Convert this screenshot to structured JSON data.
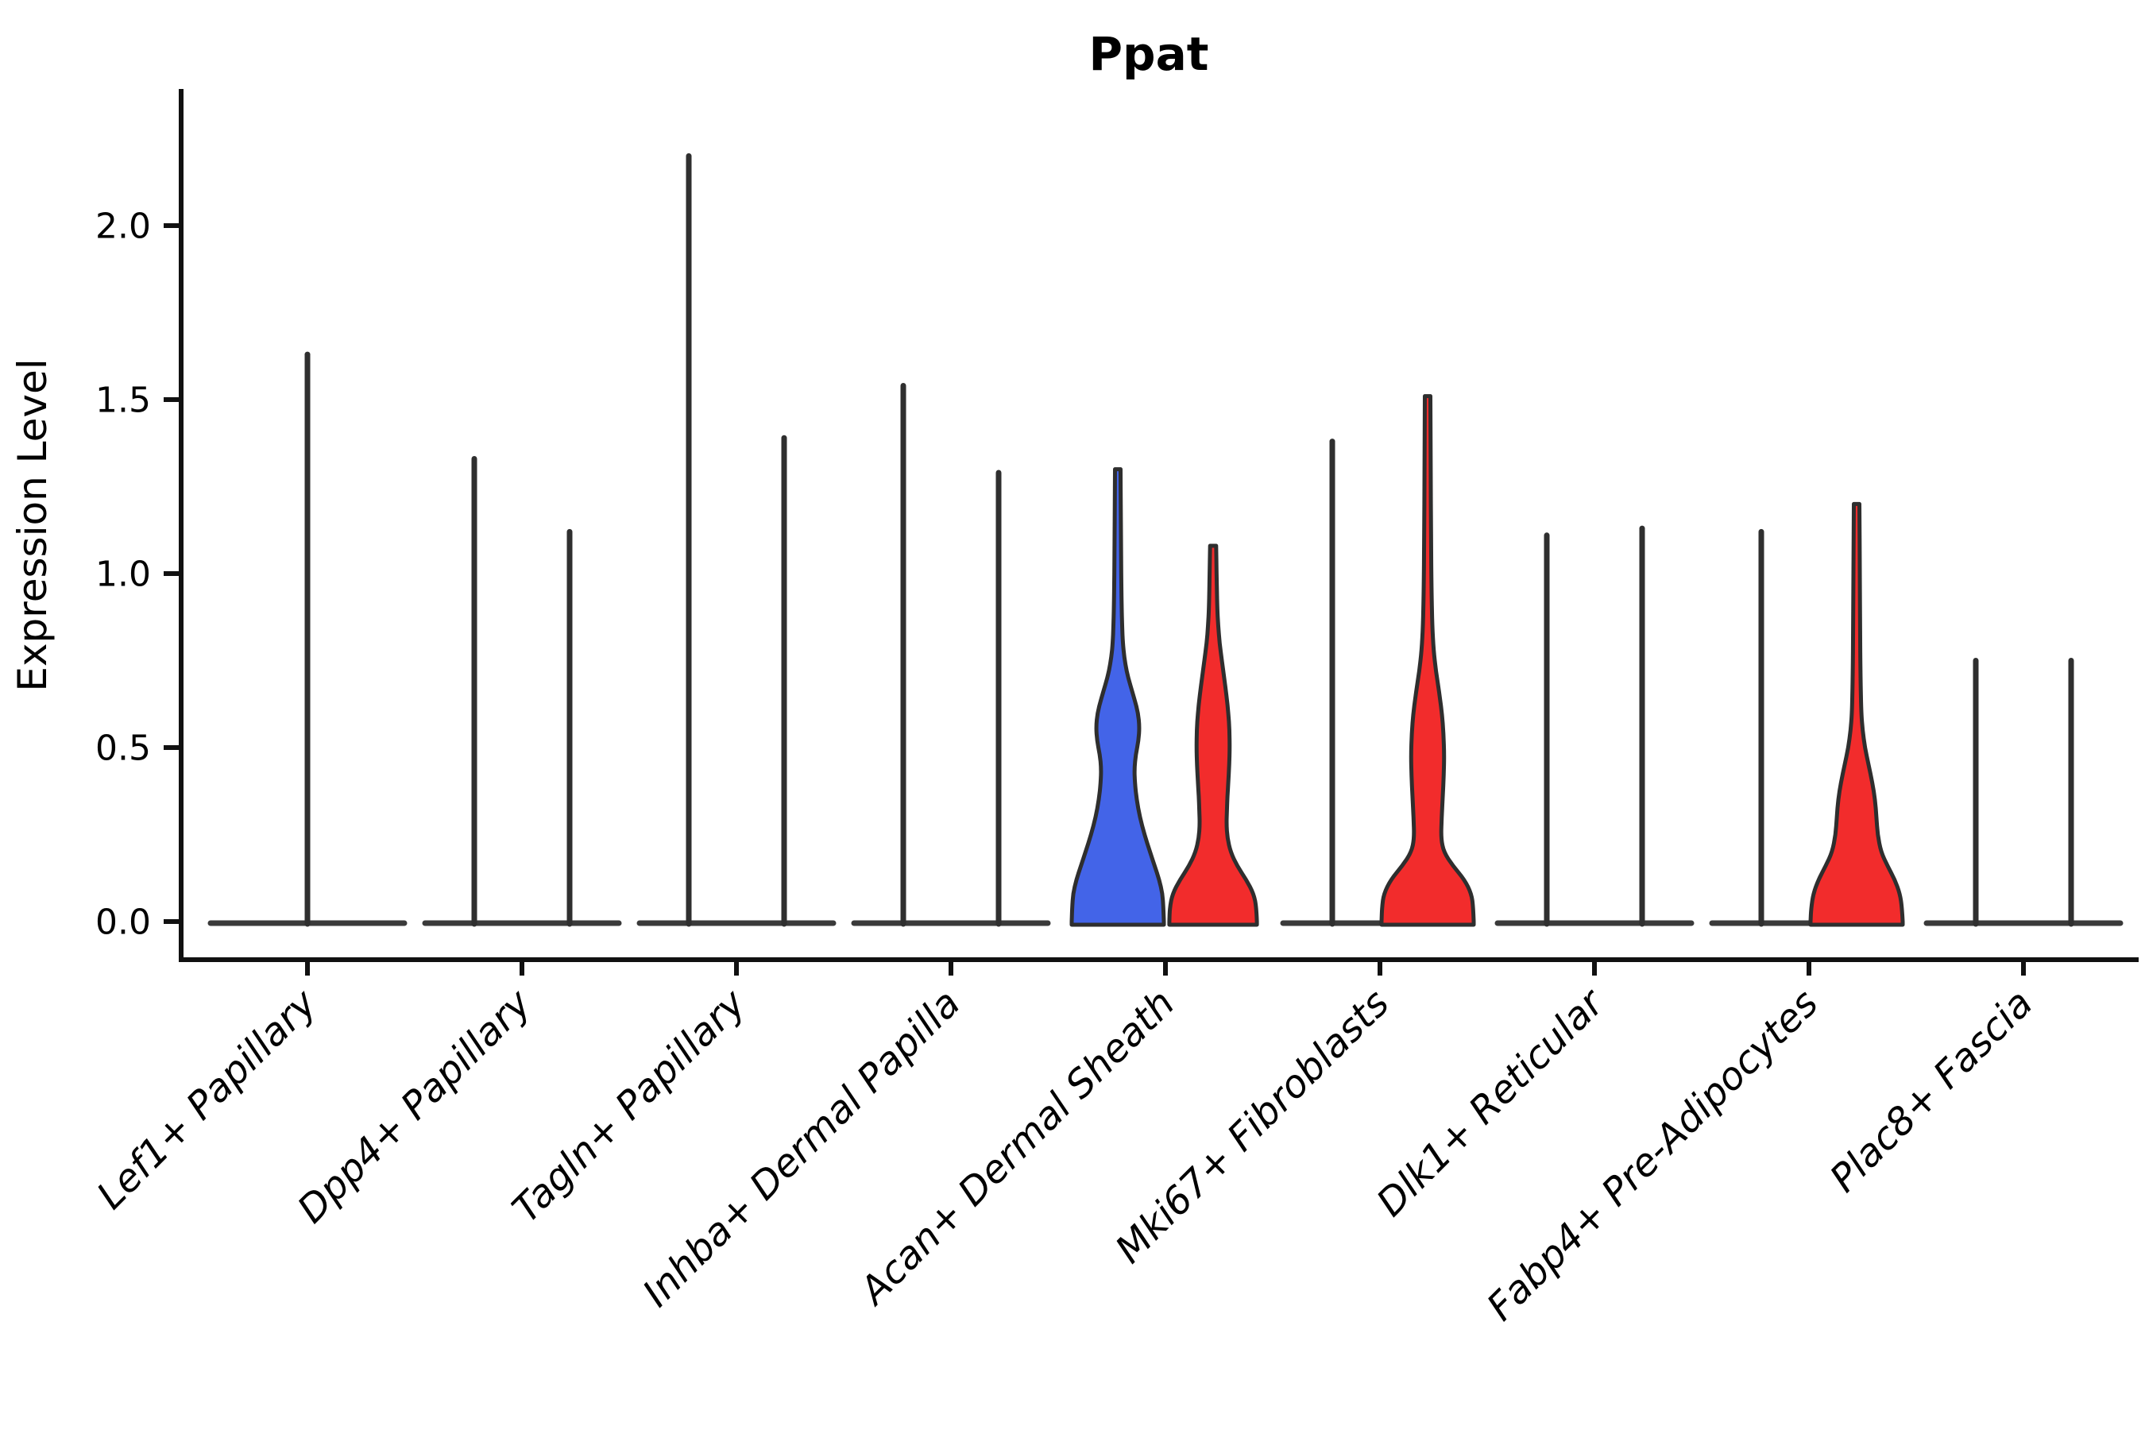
{
  "chart_data": {
    "type": "violin",
    "title": "Ppat",
    "ylabel": "Expression Level",
    "ylim": [
      0,
      2.35
    ],
    "grid": false,
    "legend": null,
    "yticks": [
      "0.0",
      "0.5",
      "1.0",
      "1.5",
      "2.0"
    ],
    "categories": [
      "Lef1+ Papillary",
      "Dpp4+ Papillary",
      "Tagln+ Papillary",
      "Inhba+ Dermal Papilla",
      "Acan+ Dermal Sheath",
      "Mki67+ Fibroblasts",
      "Dlk1+ Reticular",
      "Fabp4+ Pre-Adipocytes",
      "Plac8+ Fascia"
    ],
    "colors": {
      "spike": "#2f2f2f",
      "outline": "#2e2e2e",
      "blue": "#4364E8",
      "red": "#F22C2C"
    },
    "groups": [
      {
        "category": "Lef1+ Papillary",
        "violins": [
          {
            "kind": "spike",
            "max": 1.63,
            "span": "full"
          }
        ]
      },
      {
        "category": "Dpp4+ Papillary",
        "violins": [
          {
            "kind": "spike",
            "max": 1.33
          },
          {
            "kind": "spike",
            "max": 1.12
          }
        ]
      },
      {
        "category": "Tagln+ Papillary",
        "violins": [
          {
            "kind": "spike",
            "max": 2.2
          },
          {
            "kind": "spike",
            "max": 1.39
          }
        ]
      },
      {
        "category": "Inhba+ Dermal Papilla",
        "violins": [
          {
            "kind": "spike",
            "max": 1.54
          },
          {
            "kind": "spike",
            "max": 1.29
          }
        ]
      },
      {
        "category": "Acan+ Dermal Sheath",
        "violins": [
          {
            "kind": "shaped",
            "max": 1.3,
            "color": "blue",
            "profile": [
              [
                0,
                1
              ],
              [
                0.04,
                0.99
              ],
              [
                0.08,
                0.97
              ],
              [
                0.12,
                0.9
              ],
              [
                0.16,
                0.8
              ],
              [
                0.2,
                0.7
              ],
              [
                0.25,
                0.58
              ],
              [
                0.3,
                0.48
              ],
              [
                0.35,
                0.41
              ],
              [
                0.4,
                0.37
              ],
              [
                0.44,
                0.36
              ],
              [
                0.48,
                0.39
              ],
              [
                0.52,
                0.45
              ],
              [
                0.56,
                0.47
              ],
              [
                0.6,
                0.44
              ],
              [
                0.64,
                0.36
              ],
              [
                0.68,
                0.27
              ],
              [
                0.72,
                0.19
              ],
              [
                0.76,
                0.14
              ],
              [
                0.8,
                0.11
              ],
              [
                0.85,
                0.095
              ],
              [
                0.9,
                0.085
              ],
              [
                1,
                0.075
              ],
              [
                1.1,
                0.07
              ],
              [
                1.2,
                0.065
              ],
              [
                1.3,
                0.06
              ]
            ]
          },
          {
            "kind": "shaped",
            "max": 1.08,
            "color": "red",
            "profile": [
              [
                0,
                0.95
              ],
              [
                0.04,
                0.94
              ],
              [
                0.08,
                0.88
              ],
              [
                0.12,
                0.72
              ],
              [
                0.16,
                0.52
              ],
              [
                0.2,
                0.38
              ],
              [
                0.24,
                0.31
              ],
              [
                0.28,
                0.29
              ],
              [
                0.32,
                0.3
              ],
              [
                0.36,
                0.31
              ],
              [
                0.4,
                0.33
              ],
              [
                0.45,
                0.35
              ],
              [
                0.5,
                0.36
              ],
              [
                0.55,
                0.355
              ],
              [
                0.6,
                0.33
              ],
              [
                0.65,
                0.29
              ],
              [
                0.7,
                0.24
              ],
              [
                0.75,
                0.19
              ],
              [
                0.8,
                0.14
              ],
              [
                0.85,
                0.11
              ],
              [
                0.9,
                0.09
              ],
              [
                1,
                0.075
              ],
              [
                1.08,
                0.065
              ]
            ]
          }
        ]
      },
      {
        "category": "Mki67+ Fibroblasts",
        "violins": [
          {
            "kind": "spike",
            "max": 1.38
          },
          {
            "kind": "shaped",
            "max": 1.51,
            "color": "red",
            "profile": [
              [
                0,
                1
              ],
              [
                0.04,
                0.99
              ],
              [
                0.08,
                0.95
              ],
              [
                0.12,
                0.8
              ],
              [
                0.16,
                0.55
              ],
              [
                0.2,
                0.35
              ],
              [
                0.24,
                0.29
              ],
              [
                0.3,
                0.305
              ],
              [
                0.36,
                0.33
              ],
              [
                0.42,
                0.35
              ],
              [
                0.48,
                0.36
              ],
              [
                0.54,
                0.345
              ],
              [
                0.6,
                0.31
              ],
              [
                0.66,
                0.25
              ],
              [
                0.72,
                0.18
              ],
              [
                0.78,
                0.13
              ],
              [
                0.85,
                0.1
              ],
              [
                0.95,
                0.085
              ],
              [
                1.1,
                0.075
              ],
              [
                1.3,
                0.068
              ],
              [
                1.51,
                0.06
              ]
            ]
          }
        ]
      },
      {
        "category": "Dlk1+ Reticular",
        "violins": [
          {
            "kind": "spike",
            "max": 1.11
          },
          {
            "kind": "spike",
            "max": 1.13
          }
        ]
      },
      {
        "category": "Fabp4+ Pre-Adipocytes",
        "violins": [
          {
            "kind": "spike",
            "max": 1.12
          },
          {
            "kind": "shaped",
            "max": 1.2,
            "color": "red",
            "profile": [
              [
                0,
                1
              ],
              [
                0.04,
                0.985
              ],
              [
                0.08,
                0.94
              ],
              [
                0.12,
                0.83
              ],
              [
                0.16,
                0.67
              ],
              [
                0.2,
                0.53
              ],
              [
                0.25,
                0.455
              ],
              [
                0.3,
                0.43
              ],
              [
                0.35,
                0.4
              ],
              [
                0.4,
                0.34
              ],
              [
                0.45,
                0.26
              ],
              [
                0.5,
                0.18
              ],
              [
                0.55,
                0.13
              ],
              [
                0.6,
                0.1
              ],
              [
                0.7,
                0.085
              ],
              [
                0.85,
                0.075
              ],
              [
                1,
                0.07
              ],
              [
                1.2,
                0.06
              ]
            ]
          }
        ]
      },
      {
        "category": "Plac8+ Fascia",
        "violins": [
          {
            "kind": "spike",
            "max": 0.75
          },
          {
            "kind": "spike",
            "max": 0.75
          }
        ]
      }
    ]
  }
}
